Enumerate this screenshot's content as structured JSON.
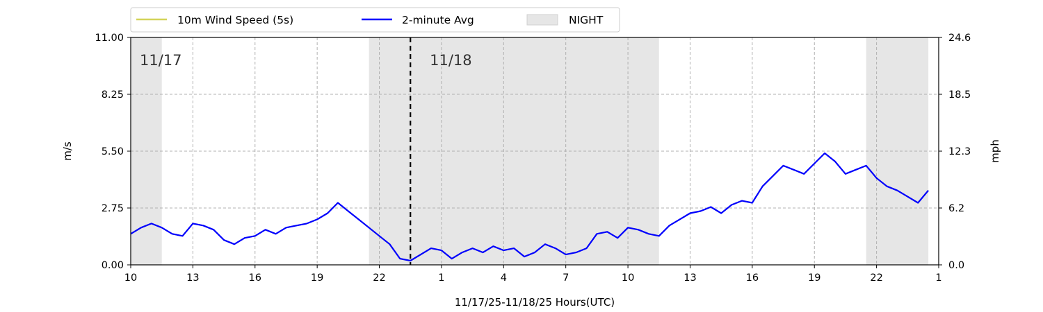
{
  "chart_data": {
    "type": "line",
    "xlabel": "11/17/25-11/18/25  Hours(UTC)",
    "ylabel": "m/s",
    "ylabel_right": "mph",
    "x_unit": "hours since 11/17 00:00 UTC",
    "xlim": [
      10,
      49
    ],
    "ylim": [
      0,
      11
    ],
    "ylim_right": [
      0,
      24.6
    ],
    "x_ticks": [
      10,
      13,
      16,
      19,
      22,
      25,
      28,
      31,
      34,
      37,
      40,
      43,
      46,
      49
    ],
    "x_tick_labels": [
      "10",
      "13",
      "16",
      "19",
      "22",
      "1",
      "4",
      "7",
      "10",
      "13",
      "16",
      "19",
      "22",
      "1"
    ],
    "y_tick_labels": [
      "0.00",
      "2.75",
      "5.50",
      "8.25",
      "11.00"
    ],
    "y_right_tick_labels": [
      "0.0",
      "6.2",
      "12.3",
      "18.5",
      "24.6"
    ],
    "grid": true,
    "legend_position": "top-left, above plot",
    "legend": [
      "10m Wind Speed (5s)",
      "2-minute Avg",
      "NIGHT"
    ],
    "night_periods": [
      [
        10,
        11.5
      ],
      [
        21.5,
        35.5
      ],
      [
        45.5,
        48.5
      ]
    ],
    "day_markers": [
      {
        "label": "11/17",
        "x": 10
      },
      {
        "label": "11/18",
        "x": 24
      }
    ],
    "midnight_x": 23.5,
    "series": [
      {
        "name": "10m Wind Speed (5s)",
        "color": "#d4d45a",
        "x": [
          10,
          10.5,
          11,
          11.5,
          12,
          12.5,
          13,
          13.5,
          14,
          14.5,
          15,
          15.5,
          16,
          16.5,
          17,
          17.5,
          18,
          18.5,
          19,
          19.5,
          20,
          20.5,
          21,
          21.5,
          22,
          22.5,
          23,
          23.5,
          24,
          24.5,
          25,
          25.5,
          26,
          26.5,
          27,
          27.5,
          28,
          28.5,
          29,
          29.5,
          30,
          30.5,
          31,
          31.5,
          32,
          32.5,
          33,
          33.5,
          34,
          34.5,
          35,
          35.5,
          36,
          36.5,
          37,
          37.5,
          38,
          38.5,
          39,
          39.5,
          40,
          40.5,
          41,
          41.5,
          42,
          42.5,
          43,
          43.5,
          44,
          44.5,
          45,
          45.5,
          46,
          46.5,
          47,
          47.5,
          48,
          48.5
        ],
        "y": [
          1.5,
          1.8,
          2.0,
          1.8,
          1.5,
          1.4,
          2.0,
          1.9,
          1.7,
          1.2,
          1.0,
          1.3,
          1.4,
          1.7,
          1.5,
          1.8,
          1.9,
          2.0,
          2.2,
          2.5,
          3.0,
          2.6,
          2.2,
          1.8,
          1.4,
          1.0,
          0.3,
          0.2,
          0.5,
          0.8,
          0.7,
          0.3,
          0.6,
          0.8,
          0.6,
          0.9,
          0.7,
          0.8,
          0.4,
          0.6,
          1.0,
          0.8,
          0.5,
          0.6,
          0.8,
          1.5,
          1.6,
          1.3,
          1.8,
          1.7,
          1.5,
          1.4,
          1.9,
          2.2,
          2.5,
          2.6,
          2.8,
          2.5,
          2.9,
          3.1,
          3.0,
          3.8,
          4.3,
          4.8,
          4.6,
          4.4,
          4.9,
          5.4,
          5.0,
          4.4,
          4.6,
          4.8,
          4.2,
          3.8,
          3.6,
          3.3,
          3.0,
          3.6
        ]
      },
      {
        "name": "2-minute Avg",
        "color": "#0000ff",
        "x": [
          10,
          10.5,
          11,
          11.5,
          12,
          12.5,
          13,
          13.5,
          14,
          14.5,
          15,
          15.5,
          16,
          16.5,
          17,
          17.5,
          18,
          18.5,
          19,
          19.5,
          20,
          20.5,
          21,
          21.5,
          22,
          22.5,
          23,
          23.5,
          24,
          24.5,
          25,
          25.5,
          26,
          26.5,
          27,
          27.5,
          28,
          28.5,
          29,
          29.5,
          30,
          30.5,
          31,
          31.5,
          32,
          32.5,
          33,
          33.5,
          34,
          34.5,
          35,
          35.5,
          36,
          36.5,
          37,
          37.5,
          38,
          38.5,
          39,
          39.5,
          40,
          40.5,
          41,
          41.5,
          42,
          42.5,
          43,
          43.5,
          44,
          44.5,
          45,
          45.5,
          46,
          46.5,
          47,
          47.5,
          48,
          48.5
        ],
        "y": [
          1.5,
          1.8,
          2.0,
          1.8,
          1.5,
          1.4,
          2.0,
          1.9,
          1.7,
          1.2,
          1.0,
          1.3,
          1.4,
          1.7,
          1.5,
          1.8,
          1.9,
          2.0,
          2.2,
          2.5,
          3.0,
          2.6,
          2.2,
          1.8,
          1.4,
          1.0,
          0.3,
          0.2,
          0.5,
          0.8,
          0.7,
          0.3,
          0.6,
          0.8,
          0.6,
          0.9,
          0.7,
          0.8,
          0.4,
          0.6,
          1.0,
          0.8,
          0.5,
          0.6,
          0.8,
          1.5,
          1.6,
          1.3,
          1.8,
          1.7,
          1.5,
          1.4,
          1.9,
          2.2,
          2.5,
          2.6,
          2.8,
          2.5,
          2.9,
          3.1,
          3.0,
          3.8,
          4.3,
          4.8,
          4.6,
          4.4,
          4.9,
          5.4,
          5.0,
          4.4,
          4.6,
          4.8,
          4.2,
          3.8,
          3.6,
          3.3,
          3.0,
          3.6
        ]
      }
    ],
    "colors": {
      "raw": "#d4d45a",
      "avg": "#0000ff",
      "night": "#e6e6e6",
      "grid": "#b0b0b0",
      "midnight_line": "#000000"
    }
  }
}
